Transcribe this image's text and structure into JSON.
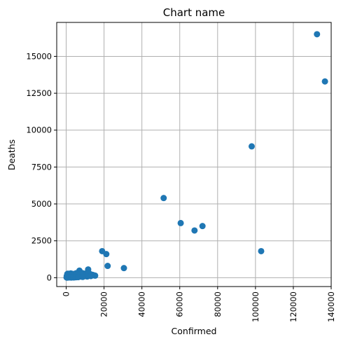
{
  "chart_data": {
    "type": "scatter",
    "title": "Chart name",
    "xlabel": "Confirmed",
    "ylabel": "Deaths",
    "xlim": [
      -5000,
      140000
    ],
    "ylim": [
      -600,
      17300
    ],
    "x_ticks": [
      0,
      20000,
      40000,
      60000,
      80000,
      100000,
      120000,
      140000
    ],
    "y_ticks": [
      0,
      2500,
      5000,
      7500,
      10000,
      12500,
      15000
    ],
    "grid": true,
    "marker_color": "#1f77b4",
    "series": [
      {
        "x": [
          132500,
          136700,
          98000,
          51500,
          60500,
          72000,
          67800,
          103000,
          19000,
          21200,
          21900,
          30500,
          200,
          400,
          600,
          800,
          1000,
          1200,
          1500,
          1800,
          2000,
          2200,
          2500,
          2800,
          3000,
          3200,
          3500,
          3800,
          4000,
          4300,
          4600,
          5000,
          5300,
          5600,
          6000,
          6300,
          6600,
          7000,
          7200,
          7500,
          8000,
          8300,
          8600,
          9000,
          9500,
          10000,
          10500,
          11000,
          11600,
          12200,
          12800,
          13400,
          14000,
          14600,
          15300,
          300,
          700,
          1100,
          1600,
          2100,
          2600,
          3100,
          3600,
          4100,
          4800,
          5500,
          6200,
          6900,
          7600,
          8400,
          9200,
          10100,
          11100,
          12000,
          12300,
          13000,
          600,
          900,
          1300,
          2400,
          3300,
          4400,
          5200,
          6800,
          7800,
          500,
          1500,
          2700,
          3900,
          5100,
          6400,
          8800
        ],
        "y": [
          16500,
          13300,
          8900,
          5400,
          3700,
          3500,
          3200,
          1800,
          1800,
          1600,
          800,
          650,
          20,
          35,
          60,
          50,
          80,
          90,
          110,
          140,
          100,
          160,
          130,
          190,
          120,
          150,
          180,
          210,
          140,
          170,
          200,
          230,
          180,
          210,
          250,
          160,
          190,
          480,
          230,
          330,
          260,
          180,
          310,
          200,
          240,
          280,
          220,
          190,
          560,
          260,
          230,
          210,
          190,
          160,
          140,
          110,
          150,
          190,
          40,
          70,
          30,
          60,
          90,
          20,
          50,
          80,
          40,
          70,
          100,
          60,
          90,
          120,
          80,
          320,
          150,
          110,
          250,
          270,
          230,
          290,
          260,
          240,
          300,
          200,
          220,
          5,
          15,
          10,
          25,
          30,
          45,
          55
        ]
      }
    ]
  }
}
